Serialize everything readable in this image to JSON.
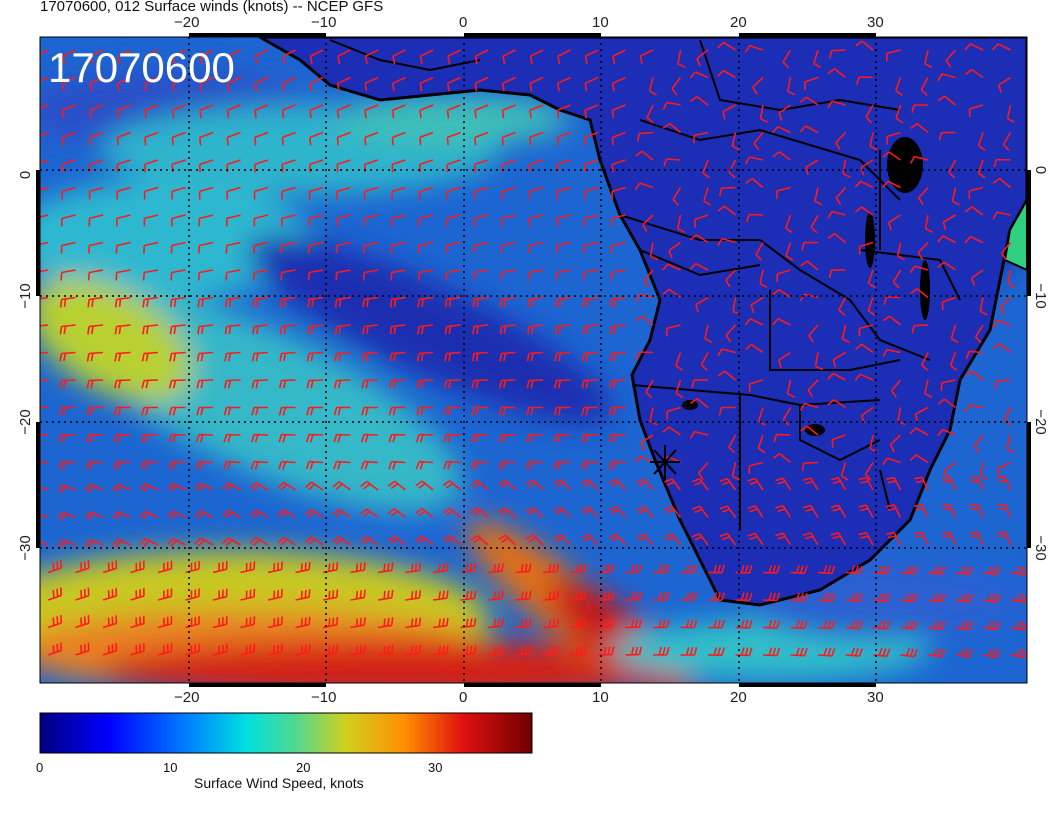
{
  "title": "17070600, 012 Surface winds (knots) -- NCEP GFS",
  "timestamp_overlay": "17070600",
  "map": {
    "lon_ticks": [
      "−20",
      "−10",
      "0",
      "10",
      "20",
      "30"
    ],
    "lat_ticks": [
      "0",
      "−10",
      "−20",
      "−30"
    ],
    "colors": {
      "ocean_dark": "#0a1a9a",
      "ocean_mid": "#1d6fd6",
      "cyan": "#2fc4c8",
      "green": "#7fd36a",
      "yellow": "#d8d820",
      "orange": "#f07a1a",
      "red": "#c81414",
      "land": "#1a2fb8",
      "coast": "#000000",
      "barb": "#ff1a1a"
    }
  },
  "colorbar": {
    "ticks": [
      "0",
      "10",
      "20",
      "30"
    ],
    "label": "Surface Wind Speed, knots",
    "range": [
      0,
      37
    ]
  }
}
